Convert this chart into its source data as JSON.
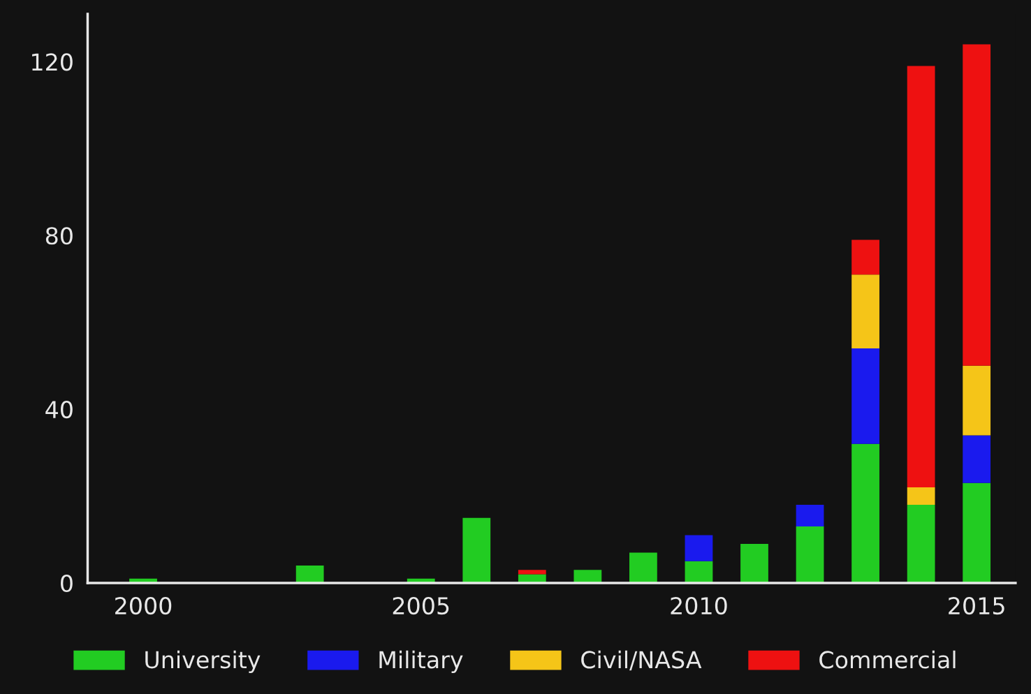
{
  "chart_data": {
    "type": "bar",
    "stacked": true,
    "x": [
      2000,
      2003,
      2005,
      2006,
      2007,
      2008,
      2009,
      2010,
      2011,
      2012,
      2013,
      2014,
      2015
    ],
    "series": [
      {
        "name": "University",
        "color": "#22cc22",
        "values": [
          1,
          4,
          1,
          15,
          2,
          3,
          7,
          5,
          9,
          13,
          32,
          18,
          23
        ]
      },
      {
        "name": "Military",
        "color": "#1a1aee",
        "values": [
          0,
          0,
          0,
          0,
          0,
          0,
          0,
          6,
          0,
          5,
          22,
          0,
          11
        ]
      },
      {
        "name": "Civil/NASA",
        "color": "#f5c518",
        "values": [
          0,
          0,
          0,
          0,
          0,
          0,
          0,
          0,
          0,
          0,
          17,
          4,
          16
        ]
      },
      {
        "name": "Commercial",
        "color": "#ee1111",
        "values": [
          0,
          0,
          0,
          0,
          1,
          0,
          0,
          0,
          0,
          0,
          8,
          97,
          74
        ]
      }
    ],
    "xlim": [
      1999,
      2015.7
    ],
    "xticks": [
      2000,
      2005,
      2010,
      2015
    ],
    "ylim": [
      0,
      131
    ],
    "yticks": [
      0,
      40,
      80,
      120
    ],
    "grid": false,
    "legend": "bottom"
  }
}
